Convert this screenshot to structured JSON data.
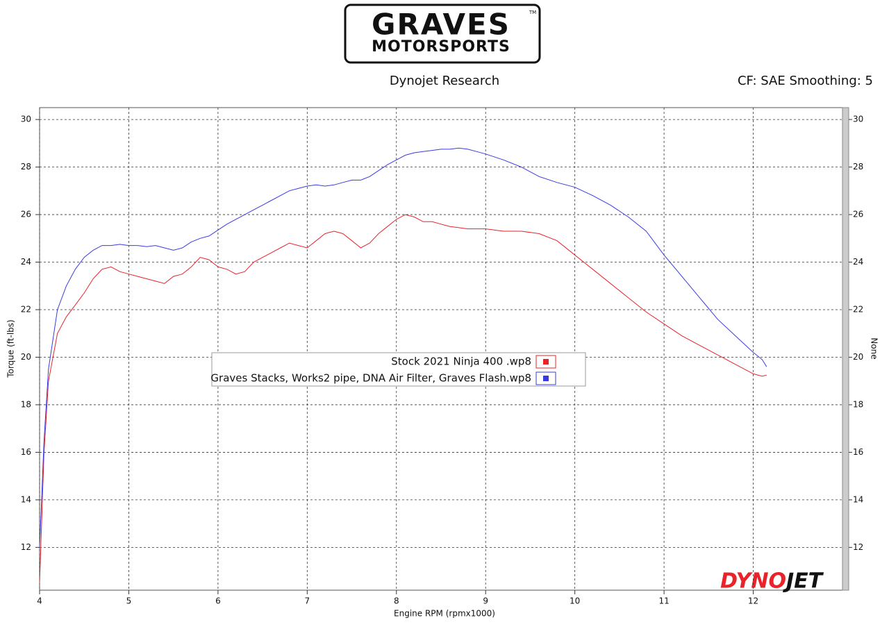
{
  "header": {
    "logo_line1": "GRAVES",
    "logo_line2": "MOTORSPORTS",
    "logo_mark": "TM",
    "left": "Dynojet Research",
    "right": "CF: SAE Smoothing: 5"
  },
  "watermark": [
    "DYNO",
    "JET"
  ],
  "chart_data": {
    "type": "line",
    "x_label": "Engine RPM (rpmx1000)",
    "y_label": "Torque (ft-lbs)",
    "y2_label": "None",
    "x": [
      4.0,
      4.05,
      4.1,
      4.2,
      4.3,
      4.4,
      4.5,
      4.6,
      4.7,
      4.8,
      4.9,
      5.0,
      5.1,
      5.2,
      5.3,
      5.4,
      5.5,
      5.6,
      5.7,
      5.8,
      5.9,
      6.0,
      6.1,
      6.2,
      6.3,
      6.4,
      6.5,
      6.6,
      6.7,
      6.8,
      6.9,
      7.0,
      7.1,
      7.2,
      7.3,
      7.4,
      7.5,
      7.6,
      7.7,
      7.8,
      7.9,
      8.0,
      8.1,
      8.2,
      8.3,
      8.4,
      8.5,
      8.6,
      8.7,
      8.8,
      8.9,
      9.0,
      9.2,
      9.4,
      9.6,
      9.8,
      10.0,
      10.2,
      10.4,
      10.6,
      10.8,
      11.0,
      11.2,
      11.4,
      11.6,
      11.8,
      12.0,
      12.1,
      12.15
    ],
    "series": [
      {
        "name": "Stock 2021 Ninja 400 .wp8",
        "color": "#e8232a",
        "values": [
          10.5,
          16,
          19,
          21,
          21.7,
          22.2,
          22.7,
          23.3,
          23.7,
          23.8,
          23.6,
          23.5,
          23.4,
          23.3,
          23.2,
          23.1,
          23.4,
          23.5,
          23.8,
          24.2,
          24.1,
          23.8,
          23.7,
          23.5,
          23.6,
          24.0,
          24.2,
          24.4,
          24.6,
          24.8,
          24.7,
          24.6,
          24.9,
          25.2,
          25.3,
          25.2,
          24.9,
          24.6,
          24.8,
          25.2,
          25.5,
          25.8,
          26.0,
          25.9,
          25.7,
          25.7,
          25.6,
          25.5,
          25.45,
          25.4,
          25.4,
          25.4,
          25.3,
          25.3,
          25.2,
          24.9,
          24.3,
          23.7,
          23.1,
          22.5,
          21.9,
          21.4,
          20.9,
          20.5,
          20.1,
          19.7,
          19.3,
          19.2,
          19.25
        ]
      },
      {
        "name": "Graves Stacks, Works2 pipe, DNA Air Filter, Graves Flash.wp8",
        "color": "#3a3ae0",
        "values": [
          12,
          16.5,
          19.5,
          22,
          23,
          23.7,
          24.2,
          24.5,
          24.7,
          24.7,
          24.75,
          24.7,
          24.7,
          24.65,
          24.7,
          24.6,
          24.5,
          24.6,
          24.85,
          25.0,
          25.1,
          25.35,
          25.6,
          25.8,
          26.0,
          26.2,
          26.4,
          26.6,
          26.8,
          27.0,
          27.1,
          27.2,
          27.25,
          27.2,
          27.25,
          27.35,
          27.45,
          27.45,
          27.6,
          27.85,
          28.1,
          28.3,
          28.5,
          28.6,
          28.65,
          28.7,
          28.75,
          28.75,
          28.8,
          28.75,
          28.65,
          28.55,
          28.3,
          28.0,
          27.6,
          27.35,
          27.15,
          26.8,
          26.4,
          25.9,
          25.3,
          24.3,
          23.4,
          22.5,
          21.6,
          20.9,
          20.2,
          19.9,
          19.6
        ]
      }
    ],
    "xlim": [
      4,
      13
    ],
    "xticks": [
      4,
      5,
      6,
      7,
      8,
      9,
      10,
      11,
      12
    ],
    "ylim": [
      10.2,
      30.5
    ],
    "yticks": [
      12,
      14,
      16,
      18,
      20,
      22,
      24,
      26,
      28,
      30
    ],
    "y2lim": [
      10.2,
      30.5
    ],
    "y2ticks": [
      12,
      14,
      16,
      18,
      20,
      22,
      24,
      26,
      28,
      30
    ],
    "grid": true,
    "legend": "center"
  }
}
